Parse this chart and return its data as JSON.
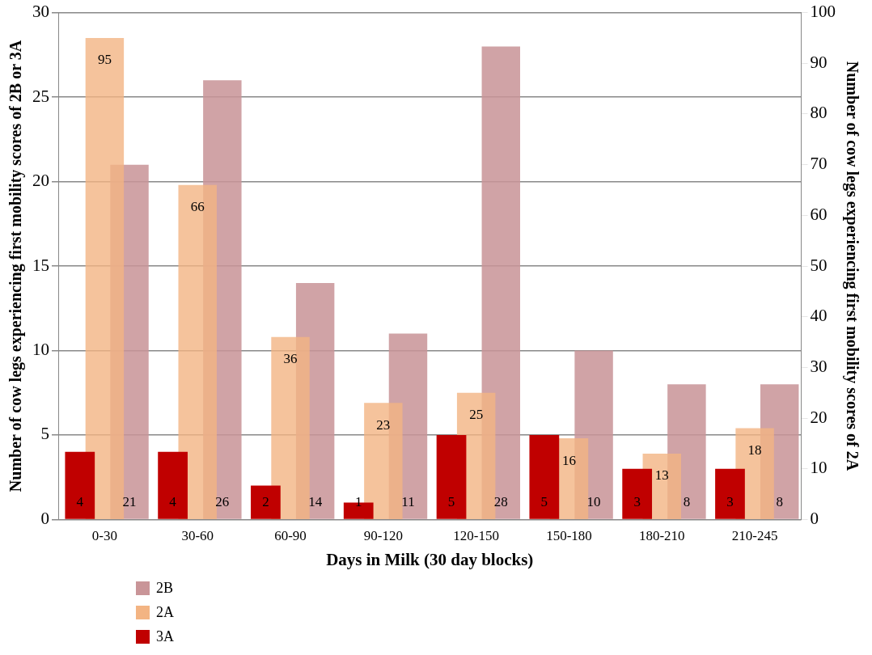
{
  "chart_data": {
    "type": "bar",
    "xlabel": "Days in Milk (30 day blocks)",
    "ylabel": "Number of cow legs experiencing first mobility scores of 2B or 3A",
    "y2label": "Number of cow legs experiencing first mobility scores of 2A",
    "categories": [
      "0-30",
      "30-60",
      "60-90",
      "90-120",
      "120-150",
      "150-180",
      "180-210",
      "210-245"
    ],
    "series": [
      {
        "name": "2B",
        "color": "#c99598",
        "values": [
          21,
          26,
          14,
          11,
          28,
          10,
          8,
          8
        ]
      },
      {
        "name": "2A",
        "color": "#f3b483",
        "axis": "y2",
        "values": [
          95,
          66,
          36,
          23,
          25,
          16,
          13,
          18
        ]
      },
      {
        "name": "3A",
        "color": "#c00000",
        "values": [
          4,
          4,
          2,
          1,
          5,
          5,
          3,
          3
        ]
      }
    ],
    "ylim": [
      0,
      30
    ],
    "yticks": [
      0,
      5,
      10,
      15,
      20,
      25,
      30
    ],
    "y2lim": [
      0,
      100
    ],
    "y2ticks": [
      0,
      10,
      20,
      30,
      40,
      50,
      60,
      70,
      80,
      90,
      100
    ],
    "grid": "y",
    "legend": "bottom",
    "data_labels": true
  }
}
